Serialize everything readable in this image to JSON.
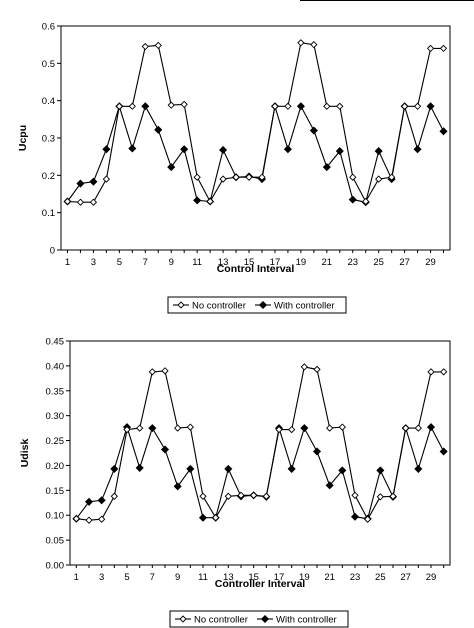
{
  "chart_data": [
    {
      "type": "line",
      "xlabel": "Control Interval",
      "ylabel": "Ucpu",
      "ylim": [
        0,
        0.6
      ],
      "yticks": [
        "0",
        "0.1",
        "0.2",
        "0.3",
        "0.4",
        "0.5",
        "0.6"
      ],
      "xticks": [
        "1",
        "3",
        "5",
        "7",
        "9",
        "11",
        "13",
        "15",
        "17",
        "19",
        "21",
        "23",
        "25",
        "27",
        "29"
      ],
      "x": [
        1,
        2,
        3,
        4,
        5,
        6,
        7,
        8,
        9,
        10,
        11,
        12,
        13,
        14,
        15,
        16,
        17,
        18,
        19,
        20,
        21,
        22,
        23,
        24,
        25,
        26,
        27,
        28,
        29,
        30
      ],
      "grid": false,
      "legend_position": "bottom",
      "series": [
        {
          "name": "No controller",
          "marker": "open-diamond",
          "values": [
            0.13,
            0.128,
            0.128,
            0.19,
            0.385,
            0.385,
            0.545,
            0.548,
            0.388,
            0.39,
            0.195,
            0.13,
            0.19,
            0.195,
            0.195,
            0.195,
            0.385,
            0.385,
            0.555,
            0.55,
            0.385,
            0.385,
            0.195,
            0.13,
            0.19,
            0.195,
            0.385,
            0.385,
            0.54,
            0.54
          ]
        },
        {
          "name": "With controller",
          "marker": "filled-diamond",
          "values": [
            0.13,
            0.178,
            0.183,
            0.27,
            0.385,
            0.272,
            0.385,
            0.322,
            0.222,
            0.27,
            0.133,
            0.13,
            0.268,
            0.195,
            0.197,
            0.19,
            0.385,
            0.27,
            0.385,
            0.32,
            0.222,
            0.265,
            0.135,
            0.128,
            0.265,
            0.19,
            0.385,
            0.27,
            0.385,
            0.318
          ]
        }
      ]
    },
    {
      "type": "line",
      "xlabel": "Controller Interval",
      "ylabel": "Udisk",
      "ylim": [
        0,
        0.45
      ],
      "yticks": [
        "0.00",
        "0.05",
        "0.10",
        "0.15",
        "0.20",
        "0.25",
        "0.30",
        "0.35",
        "0.40",
        "0.45"
      ],
      "xticks": [
        "1",
        "3",
        "5",
        "7",
        "9",
        "11",
        "13",
        "15",
        "17",
        "19",
        "21",
        "23",
        "25",
        "27",
        "29"
      ],
      "x": [
        1,
        2,
        3,
        4,
        5,
        6,
        7,
        8,
        9,
        10,
        11,
        12,
        13,
        14,
        15,
        16,
        17,
        18,
        19,
        20,
        21,
        22,
        23,
        24,
        25,
        26,
        27,
        28,
        29,
        30
      ],
      "grid": false,
      "legend_position": "bottom",
      "series": [
        {
          "name": "No controller",
          "marker": "open-diamond",
          "values": [
            0.093,
            0.09,
            0.092,
            0.138,
            0.272,
            0.275,
            0.388,
            0.39,
            0.275,
            0.277,
            0.138,
            0.095,
            0.138,
            0.14,
            0.14,
            0.138,
            0.272,
            0.272,
            0.398,
            0.393,
            0.275,
            0.277,
            0.14,
            0.092,
            0.137,
            0.138,
            0.275,
            0.275,
            0.388,
            0.388
          ]
        },
        {
          "name": "With controller",
          "marker": "filled-diamond",
          "values": [
            0.093,
            0.127,
            0.13,
            0.193,
            0.277,
            0.195,
            0.275,
            0.232,
            0.158,
            0.193,
            0.095,
            0.095,
            0.193,
            0.138,
            0.14,
            0.137,
            0.275,
            0.193,
            0.275,
            0.228,
            0.16,
            0.19,
            0.097,
            0.093,
            0.19,
            0.137,
            0.275,
            0.193,
            0.277,
            0.228
          ]
        }
      ]
    }
  ]
}
